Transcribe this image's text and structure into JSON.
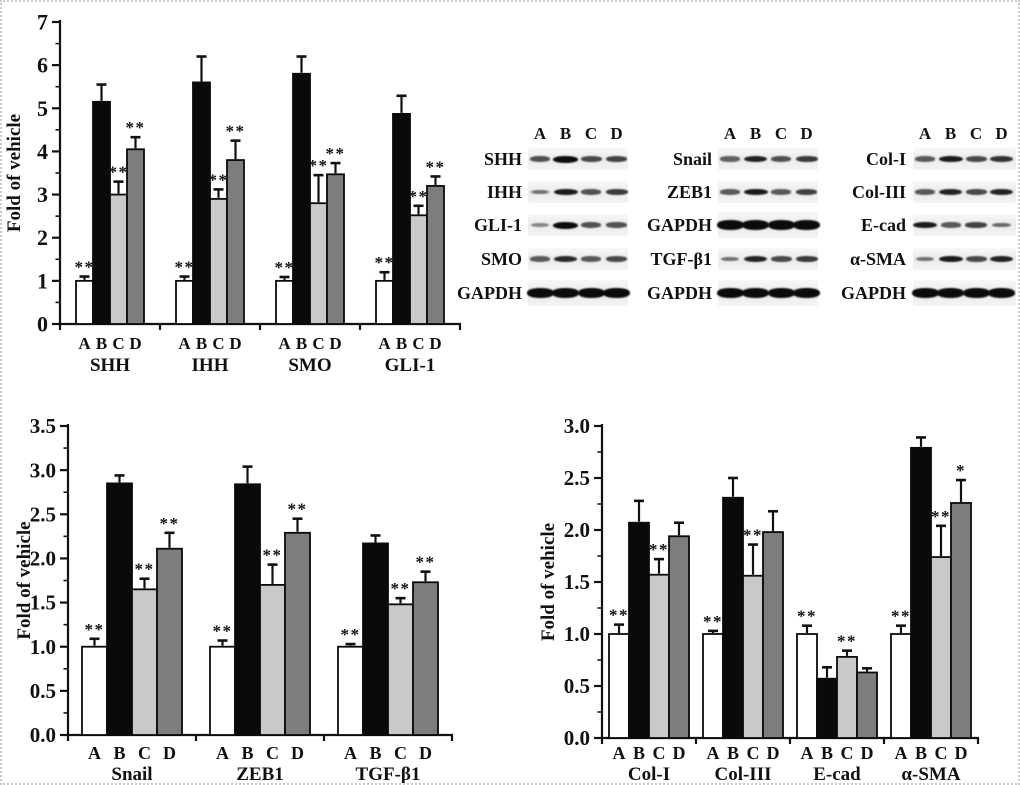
{
  "figure": {
    "background": "#ffffff",
    "border_color": "#c9c9c9",
    "bar_fill_colors": [
      "#ffffff",
      "#0a0a0a",
      "#c9c9c9",
      "#7d7d7d"
    ],
    "band_color": "#0b0b0b"
  },
  "chart_data": [
    {
      "type": "bar",
      "id": "hedgehog-pathway",
      "title": "",
      "ylabel": "Fold of vehicle",
      "xlabel": "",
      "ylim": [
        0,
        7
      ],
      "ytick_step": 1,
      "ytick_decimals": 0,
      "grid": false,
      "legend": "none",
      "categories": [
        "SHH",
        "IHH",
        "SMO",
        "GLI-1"
      ],
      "series": [
        {
          "name": "A",
          "values": [
            1.0,
            1.0,
            1.0,
            1.0
          ],
          "errors": [
            0.1,
            0.1,
            0.09,
            0.2
          ],
          "sig": [
            "**",
            "**",
            "**",
            "**"
          ]
        },
        {
          "name": "B",
          "values": [
            5.15,
            5.6,
            5.8,
            4.87
          ],
          "errors": [
            0.4,
            0.6,
            0.4,
            0.42
          ],
          "sig": [
            "",
            "",
            "",
            ""
          ]
        },
        {
          "name": "C",
          "values": [
            3.0,
            2.9,
            2.8,
            2.52
          ],
          "errors": [
            0.3,
            0.22,
            0.65,
            0.22
          ],
          "sig": [
            "**",
            "**",
            "**",
            "**"
          ]
        },
        {
          "name": "D",
          "values": [
            4.05,
            3.8,
            3.47,
            3.2
          ],
          "errors": [
            0.28,
            0.45,
            0.26,
            0.22
          ],
          "sig": [
            "**",
            "**",
            "**",
            "**"
          ]
        }
      ]
    },
    {
      "type": "bar",
      "id": "emt-markers",
      "title": "",
      "ylabel": "Fold of vehicle",
      "xlabel": "",
      "ylim": [
        0,
        3.5
      ],
      "ytick_step": 0.5,
      "ytick_decimals": 1,
      "grid": false,
      "legend": "none",
      "categories": [
        "Snail",
        "ZEB1",
        "TGF-β1"
      ],
      "series": [
        {
          "name": "A",
          "values": [
            1.0,
            1.0,
            1.0
          ],
          "errors": [
            0.09,
            0.07,
            0.03
          ],
          "sig": [
            "**",
            "**",
            "**"
          ]
        },
        {
          "name": "B",
          "values": [
            2.85,
            2.84,
            2.17
          ],
          "errors": [
            0.09,
            0.2,
            0.09
          ],
          "sig": [
            "",
            "",
            ""
          ]
        },
        {
          "name": "C",
          "values": [
            1.65,
            1.7,
            1.48
          ],
          "errors": [
            0.12,
            0.23,
            0.07
          ],
          "sig": [
            "**",
            "**",
            "**"
          ]
        },
        {
          "name": "D",
          "values": [
            2.11,
            2.29,
            1.73
          ],
          "errors": [
            0.18,
            0.16,
            0.12
          ],
          "sig": [
            "**",
            "**",
            "**"
          ]
        }
      ]
    },
    {
      "type": "bar",
      "id": "fibrosis-markers",
      "title": "",
      "ylabel": "Fold of vehicle",
      "xlabel": "",
      "ylim": [
        0,
        3.0
      ],
      "ytick_step": 0.5,
      "ytick_decimals": 1,
      "grid": false,
      "legend": "none",
      "categories": [
        "Col-I",
        "Col-III",
        "E-cad",
        "α-SMA"
      ],
      "series": [
        {
          "name": "A",
          "values": [
            1.0,
            1.0,
            1.0,
            1.0
          ],
          "errors": [
            0.09,
            0.03,
            0.08,
            0.08
          ],
          "sig": [
            "**",
            "**",
            "**",
            "**"
          ]
        },
        {
          "name": "B",
          "values": [
            2.07,
            2.31,
            0.57,
            2.79
          ],
          "errors": [
            0.21,
            0.19,
            0.11,
            0.1
          ],
          "sig": [
            "",
            "",
            "",
            ""
          ]
        },
        {
          "name": "C",
          "values": [
            1.57,
            1.56,
            0.78,
            1.74
          ],
          "errors": [
            0.15,
            0.3,
            0.06,
            0.3
          ],
          "sig": [
            "**",
            "**",
            "**",
            "**"
          ]
        },
        {
          "name": "D",
          "values": [
            1.94,
            1.98,
            0.63,
            2.26
          ],
          "errors": [
            0.13,
            0.2,
            0.04,
            0.22
          ],
          "sig": [
            "",
            "",
            "",
            "*"
          ]
        }
      ]
    }
  ],
  "blots": {
    "lanes": [
      "A",
      "B",
      "C",
      "D"
    ],
    "panels": [
      {
        "rows": [
          {
            "label": "SHH",
            "bands": [
              0.55,
              1.0,
              0.6,
              0.65
            ]
          },
          {
            "label": "IHH",
            "bands": [
              0.35,
              0.9,
              0.55,
              0.7
            ]
          },
          {
            "label": "GLI-1",
            "bands": [
              0.22,
              1.0,
              0.55,
              0.55
            ]
          },
          {
            "label": "SMO",
            "bands": [
              0.5,
              0.8,
              0.5,
              0.6
            ]
          },
          {
            "label": "GAPDH",
            "bands": [
              1.0,
              1.0,
              1.0,
              1.0
            ],
            "thick": true
          }
        ]
      },
      {
        "rows": [
          {
            "label": "Snail",
            "bands": [
              0.45,
              0.85,
              0.55,
              0.7
            ]
          },
          {
            "label": "ZEB1",
            "bands": [
              0.5,
              0.9,
              0.5,
              0.65
            ]
          },
          {
            "label": "GAPDH",
            "bands": [
              1.0,
              1.0,
              1.0,
              1.0
            ],
            "thick": true
          },
          {
            "label": "TGF-β1",
            "bands": [
              0.35,
              0.85,
              0.6,
              0.7
            ]
          },
          {
            "label": "GAPDH",
            "bands": [
              1.0,
              1.0,
              1.0,
              1.0
            ],
            "thick": true
          }
        ]
      },
      {
        "rows": [
          {
            "label": "Col-I",
            "bands": [
              0.5,
              0.9,
              0.6,
              0.75
            ]
          },
          {
            "label": "Col-III",
            "bands": [
              0.5,
              0.85,
              0.6,
              0.85
            ]
          },
          {
            "label": "E-cad",
            "bands": [
              0.9,
              0.5,
              0.65,
              0.4
            ]
          },
          {
            "label": "α-SMA",
            "bands": [
              0.35,
              0.9,
              0.6,
              0.85
            ]
          },
          {
            "label": "GAPDH",
            "bands": [
              1.0,
              1.0,
              1.0,
              1.0
            ],
            "thick": true
          }
        ]
      }
    ]
  }
}
